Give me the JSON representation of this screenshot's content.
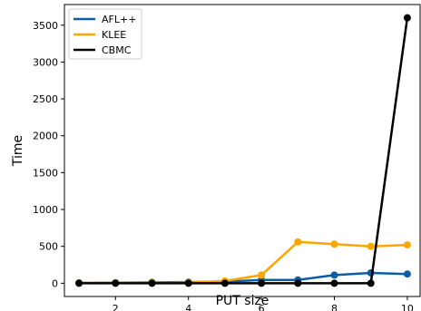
{
  "chart_data": {
    "type": "line",
    "xlabel": "PUT size",
    "ylabel": "Time",
    "xlim": [
      0.6,
      10.35
    ],
    "ylim": [
      -180,
      3780
    ],
    "xticks": [
      2,
      4,
      6,
      8,
      10
    ],
    "yticks": [
      0,
      500,
      1000,
      1500,
      2000,
      2500,
      3000,
      3500
    ],
    "x": [
      1,
      2,
      3,
      4,
      5,
      6,
      7,
      8,
      9,
      10
    ],
    "legend_position": "top-left",
    "series": [
      {
        "name": "AFL++",
        "color": "#0c5da5",
        "values": [
          5,
          8,
          12,
          15,
          20,
          45,
          45,
          110,
          140,
          125
        ]
      },
      {
        "name": "KLEE",
        "color": "#ffa500",
        "values": [
          3,
          4,
          6,
          8,
          30,
          110,
          560,
          530,
          500,
          520
        ]
      },
      {
        "name": "CBMC",
        "color": "#000000",
        "values": [
          0,
          0,
          0,
          0,
          0,
          0,
          0,
          0,
          0,
          3600
        ]
      }
    ]
  }
}
